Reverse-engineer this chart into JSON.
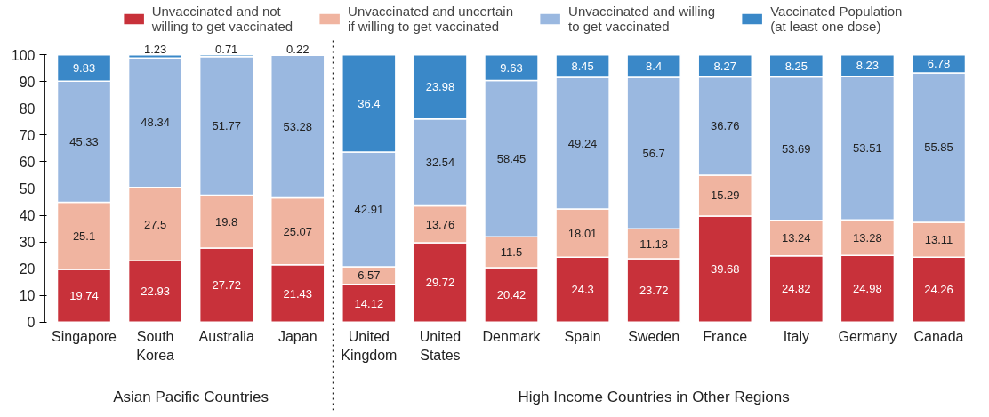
{
  "chart_data": {
    "type": "bar",
    "stacked": true,
    "categories": [
      "Singapore",
      "South\nKorea",
      "Australia",
      "Japan",
      "United\nKingdom",
      "United\nStates",
      "Denmark",
      "Spain",
      "Sweden",
      "France",
      "Italy",
      "Germany",
      "Canada"
    ],
    "series": [
      {
        "name": "Unvaccinated and not\nwilling to get vaccinated",
        "color": "#c8313a",
        "values": [
          19.74,
          22.93,
          27.72,
          21.43,
          14.12,
          29.72,
          20.42,
          24.3,
          23.72,
          39.68,
          24.82,
          24.98,
          24.26
        ]
      },
      {
        "name": "Unvaccinated and uncertain\nif willing to get vaccinated",
        "color": "#f0b4a0",
        "values": [
          25.1,
          27.5,
          19.8,
          25.07,
          6.57,
          13.76,
          11.5,
          18.01,
          11.18,
          15.29,
          13.24,
          13.28,
          13.11
        ]
      },
      {
        "name": "Unvaccinated and willing\nto get vaccinated",
        "color": "#9ab8e0",
        "values": [
          45.33,
          48.34,
          51.77,
          53.28,
          42.91,
          32.54,
          58.45,
          49.24,
          56.7,
          36.76,
          53.69,
          53.51,
          55.85
        ]
      },
      {
        "name": "Vaccinated Population\n(at least one dose)",
        "color": "#3a88c8",
        "values": [
          9.83,
          1.23,
          0.71,
          0.22,
          36.4,
          23.98,
          9.63,
          8.45,
          8.4,
          8.27,
          8.25,
          8.23,
          6.78
        ]
      }
    ],
    "ylim": [
      0,
      100
    ],
    "yticks": [
      0,
      10,
      20,
      30,
      40,
      50,
      60,
      70,
      80,
      90,
      100
    ],
    "data_labels": true,
    "legend": "top",
    "grid": false,
    "annotations": [
      "Asian Pacific Countries",
      "High Income Countries in Other Regions"
    ]
  }
}
